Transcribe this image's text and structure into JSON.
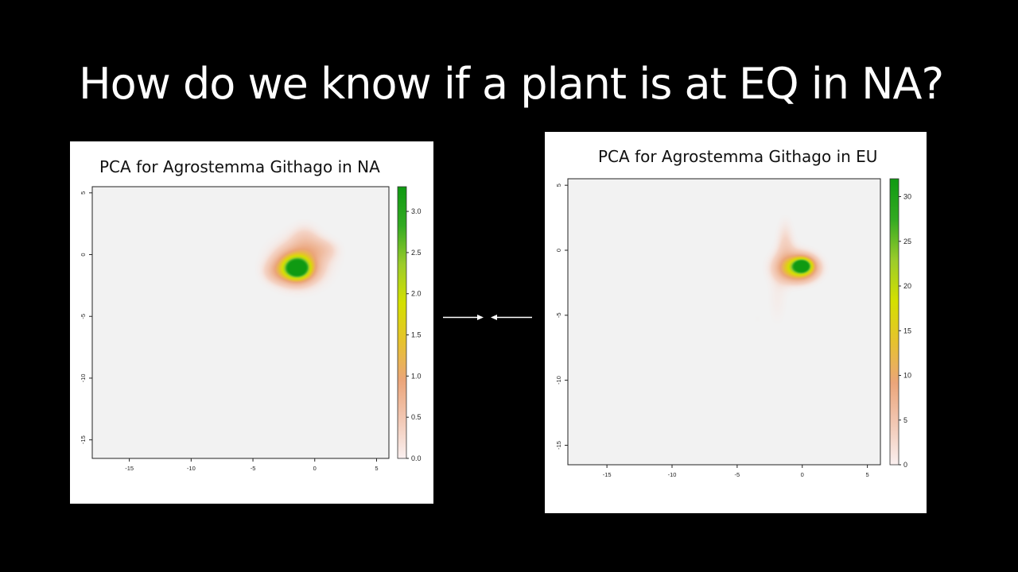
{
  "slide": {
    "title": "How do we know if a plant is at EQ in NA?"
  },
  "colors": {
    "background": "#000000",
    "panel": "#ffffff",
    "plot_background": "#f2f2f2",
    "colorbar": [
      "#faf0f0",
      "#f2c8b4",
      "#eba57a",
      "#e6c22e",
      "#d4e000",
      "#9ccc2a",
      "#33aa22",
      "#0f9a12"
    ]
  },
  "chart_data": [
    {
      "type": "heatmap",
      "title": "PCA for Agrostemma Githago in NA",
      "xlabel": "",
      "ylabel": "",
      "xlim": [
        -18,
        6
      ],
      "ylim": [
        -16.5,
        5.5
      ],
      "xticks": [
        -15,
        -10,
        -5,
        0,
        5
      ],
      "yticks": [
        5,
        0,
        -5,
        -10,
        -15
      ],
      "colorbar": {
        "min": 0,
        "max": 3.3,
        "ticks": [
          "0.0",
          "0.5",
          "1.0",
          "1.5",
          "2.0",
          "2.5",
          "3.0"
        ]
      },
      "peak": {
        "x": -1.4,
        "y": -1.1,
        "value": 3.3
      },
      "density_blobs": [
        {
          "x": -1.4,
          "y": -1.1,
          "sx": 0.6,
          "sy": 0.5,
          "value": 3.3
        },
        {
          "x": -1.5,
          "y": -1.0,
          "sx": 1.0,
          "sy": 0.8,
          "value": 1.6
        },
        {
          "x": -1.2,
          "y": -0.6,
          "sx": 1.8,
          "sy": 1.5,
          "value": 0.45
        },
        {
          "x": -0.8,
          "y": 1.0,
          "sx": 0.8,
          "sy": 1.0,
          "value": 0.3
        },
        {
          "x": 0.6,
          "y": 0.4,
          "sx": 0.9,
          "sy": 0.6,
          "value": 0.3
        },
        {
          "x": -3.0,
          "y": -1.4,
          "sx": 0.8,
          "sy": 0.6,
          "value": 0.35
        }
      ]
    },
    {
      "type": "heatmap",
      "title": "PCA for Agrostemma Githago in EU",
      "xlabel": "",
      "ylabel": "",
      "xlim": [
        -18,
        6
      ],
      "ylim": [
        -16.5,
        5.5
      ],
      "xticks": [
        -15,
        -10,
        -5,
        0,
        5
      ],
      "yticks": [
        5,
        0,
        -5,
        -10,
        -15
      ],
      "colorbar": {
        "min": 0,
        "max": 32,
        "ticks": [
          "0",
          "5",
          "10",
          "15",
          "20",
          "25",
          "30"
        ]
      },
      "peak": {
        "x": 0.0,
        "y": -1.2,
        "value": 32
      },
      "density_blobs": [
        {
          "x": 0.0,
          "y": -1.2,
          "sx": 0.45,
          "sy": 0.35,
          "value": 32
        },
        {
          "x": -0.3,
          "y": -1.4,
          "sx": 0.9,
          "sy": 0.6,
          "value": 15
        },
        {
          "x": -0.6,
          "y": -1.2,
          "sx": 1.2,
          "sy": 0.9,
          "value": 5
        },
        {
          "x": -1.3,
          "y": 0.6,
          "sx": 0.5,
          "sy": 1.3,
          "value": 3
        },
        {
          "x": -1.9,
          "y": -3.8,
          "sx": 0.6,
          "sy": 1.6,
          "value": 1.5
        },
        {
          "x": -3.5,
          "y": -5.3,
          "sx": 0.4,
          "sy": 0.5,
          "value": 0.8
        }
      ]
    }
  ]
}
